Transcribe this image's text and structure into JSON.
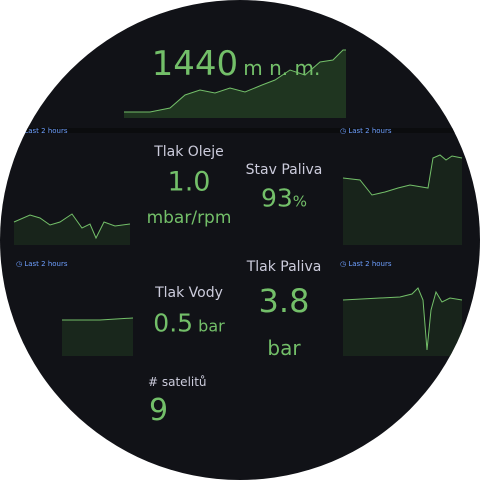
{
  "panels": [
    {
      "value": "1440",
      "unit": "m n. m."
    },
    {
      "title": "Tlak Oleje",
      "value": "1.0",
      "unit": "mbar/rpm"
    },
    {
      "title": "Stav Paliva",
      "value": "93",
      "unit": "%"
    },
    {
      "title": "Tlak Vody",
      "value": "0.5",
      "unit": "bar"
    },
    {
      "title": "Tlak Paliva",
      "value": "3.8",
      "unit": "bar"
    },
    {
      "title": "# satelitů",
      "value": "9"
    }
  ],
  "time_labels": [
    "Last 2 hours",
    "Last 2 hours",
    "Last 2 hours",
    "Last 2 hours"
  ]
}
